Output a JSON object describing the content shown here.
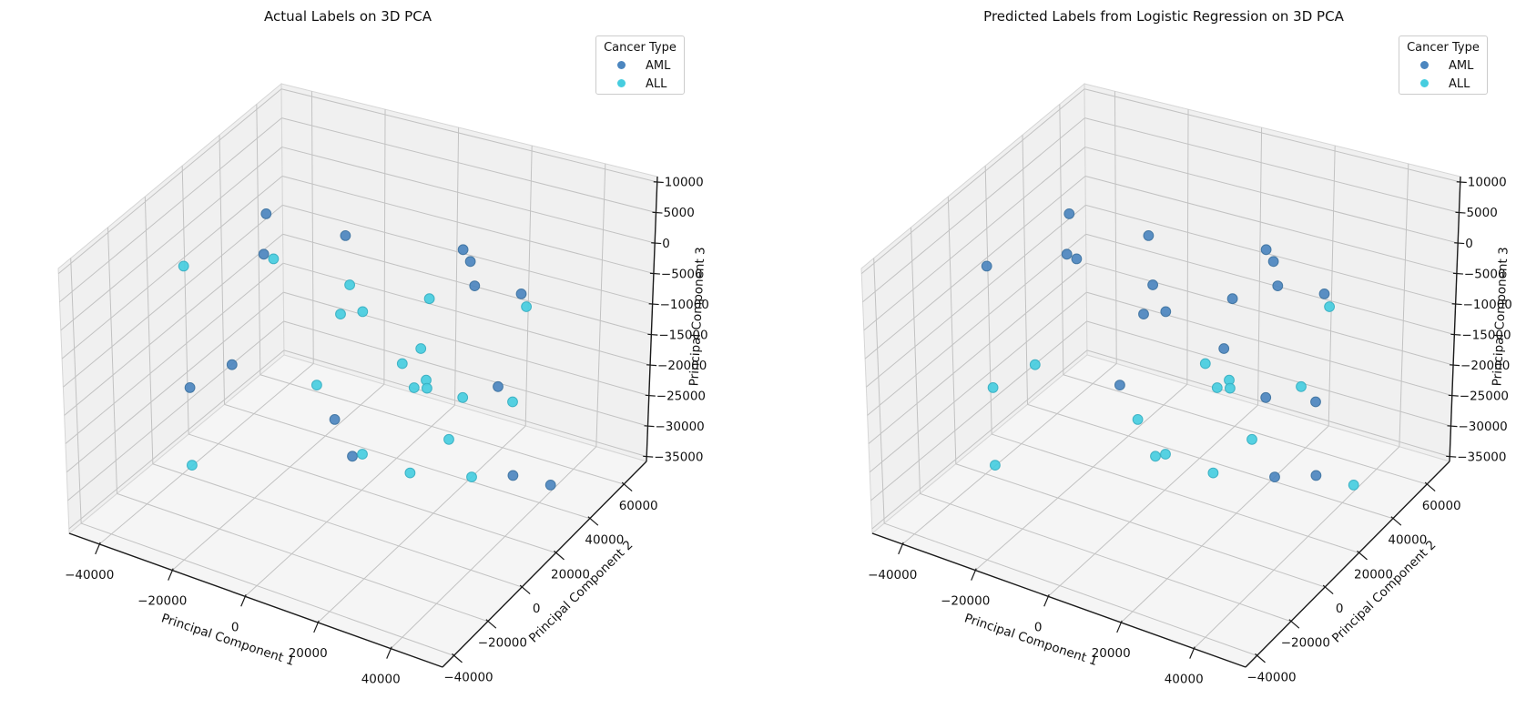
{
  "figure": {
    "background": "#ffffff"
  },
  "charts": [
    {
      "title": "Actual Labels on 3D PCA",
      "legend": {
        "title": "Cancer Type",
        "items": [
          {
            "label": "AML",
            "color": "#4c86bf"
          },
          {
            "label": "ALL",
            "color": "#46cddf"
          }
        ]
      },
      "axes": {
        "xlabel": "Principal Component 1",
        "ylabel": "Principal Component 2",
        "zlabel": "Principal Component 3"
      }
    },
    {
      "title": "Predicted Labels from Logistic Regression on 3D PCA",
      "legend": {
        "title": "Cancer Type",
        "items": [
          {
            "label": "AML",
            "color": "#4c86bf"
          },
          {
            "label": "ALL",
            "color": "#46cddf"
          }
        ]
      },
      "axes": {
        "xlabel": "Principal Component 1",
        "ylabel": "Principal Component 2",
        "zlabel": "Principal Component 3"
      }
    }
  ],
  "chart_data": [
    {
      "type": "scatter",
      "projection": "3d",
      "title": "Actual Labels on 3D PCA",
      "xlabel": "Principal Component 1",
      "ylabel": "Principal Component 2",
      "zlabel": "Principal Component 3",
      "xlim": [
        -48300,
        54200
      ],
      "ylim": [
        -46700,
        73300
      ],
      "zlim": [
        -35800,
        10900
      ],
      "xticks": [
        -40000,
        -20000,
        0,
        20000,
        40000
      ],
      "yticks": [
        -40000,
        -20000,
        0,
        20000,
        40000,
        60000
      ],
      "zticks": [
        -35000,
        -30000,
        -25000,
        -20000,
        -15000,
        -10000,
        -5000,
        0,
        5000,
        10000
      ],
      "series": [
        {
          "name": "AML",
          "color": "#4c86bf",
          "points": [
            [
              -36250,
              40680,
              -775
            ],
            [
              -17900,
              47330,
              -3110
            ],
            [
              -36860,
              40370,
              -7780
            ],
            [
              10125,
              55910,
              -3110
            ],
            [
              9370,
              61680,
              -6850
            ],
            [
              14570,
              53560,
              -7780
            ],
            [
              21440,
              66060,
              -11520
            ],
            [
              -12835,
              -25740,
              -4040
            ],
            [
              -19630,
              -35230,
              -6850
            ],
            [
              8920,
              -13580,
              -12450
            ],
            [
              7520,
              -790,
              -22720
            ],
            [
              32630,
              29980,
              -14790
            ],
            [
              43110,
              17320,
              -24130
            ],
            [
              53030,
              18330,
              -24130
            ]
          ]
        },
        {
          "name": "ALL",
          "color": "#46cddf",
          "points": [
            [
              -30520,
              33050,
              -5450
            ],
            [
              -37230,
              -2190,
              1560
            ],
            [
              -11910,
              37600,
              -7780
            ],
            [
              -13390,
              35440,
              -12450
            ],
            [
              -6230,
              33240,
              -10120
            ],
            [
              21110,
              69870,
              -14790
            ],
            [
              7870,
              41810,
              -7780
            ],
            [
              6650,
              -18820,
              -5450
            ],
            [
              -21350,
              -31650,
              -21790
            ],
            [
              7320,
              5340,
              -24130
            ],
            [
              14110,
              24240,
              -10120
            ],
            [
              10560,
              21140,
              -12450
            ],
            [
              14370,
              26850,
              -16190
            ],
            [
              12340,
              24280,
              -17120
            ],
            [
              13940,
              28280,
              -18050
            ],
            [
              23450,
              29030,
              -18050
            ],
            [
              36040,
              31370,
              -17120
            ],
            [
              24930,
              18210,
              -21790
            ],
            [
              18250,
              9990,
              -26460
            ],
            [
              33070,
              14510,
              -25530
            ]
          ]
        }
      ]
    },
    {
      "type": "scatter",
      "projection": "3d",
      "title": "Predicted Labels from Logistic Regression on 3D PCA",
      "xlabel": "Principal Component 1",
      "ylabel": "Principal Component 2",
      "zlabel": "Principal Component 3",
      "xlim": [
        -48300,
        54200
      ],
      "ylim": [
        -46700,
        73300
      ],
      "zlim": [
        -35800,
        10900
      ],
      "xticks": [
        -40000,
        -20000,
        0,
        20000,
        40000
      ],
      "yticks": [
        -40000,
        -20000,
        0,
        20000,
        40000,
        60000
      ],
      "zticks": [
        -35000,
        -30000,
        -25000,
        -20000,
        -15000,
        -10000,
        -5000,
        0,
        5000,
        10000
      ],
      "series": [
        {
          "name": "AML",
          "color": "#4c86bf",
          "points": [
            [
              -36250,
              40680,
              -775
            ],
            [
              -17900,
              47330,
              -3110
            ],
            [
              -36860,
              40370,
              -7780
            ],
            [
              -30520,
              33050,
              -5450
            ],
            [
              -37230,
              -2190,
              1560
            ],
            [
              -11910,
              37600,
              -7780
            ],
            [
              -13390,
              35440,
              -12450
            ],
            [
              -6230,
              33240,
              -10120
            ],
            [
              10125,
              55910,
              -3110
            ],
            [
              9370,
              61680,
              -6850
            ],
            [
              14570,
              53560,
              -7780
            ],
            [
              21440,
              66060,
              -11520
            ],
            [
              7870,
              41810,
              -7780
            ],
            [
              6650,
              -18820,
              -5450
            ],
            [
              14110,
              24240,
              -10120
            ],
            [
              23450,
              29030,
              -18050
            ],
            [
              36040,
              31370,
              -17120
            ],
            [
              33070,
              14510,
              -25530
            ],
            [
              43110,
              17320,
              -24130
            ]
          ]
        },
        {
          "name": "ALL",
          "color": "#46cddf",
          "points": [
            [
              21110,
              69870,
              -14790
            ],
            [
              -12835,
              -25740,
              -4040
            ],
            [
              -19630,
              -35230,
              -6850
            ],
            [
              8920,
              -13580,
              -12450
            ],
            [
              -21350,
              -31650,
              -21790
            ],
            [
              7520,
              -790,
              -22720
            ],
            [
              7320,
              5340,
              -24130
            ],
            [
              10560,
              21140,
              -12450
            ],
            [
              14370,
              26850,
              -16190
            ],
            [
              12340,
              24280,
              -17120
            ],
            [
              13940,
              28280,
              -18050
            ],
            [
              32630,
              29980,
              -14790
            ],
            [
              24930,
              18210,
              -21790
            ],
            [
              18250,
              9990,
              -26460
            ],
            [
              53030,
              18330,
              -24130
            ]
          ]
        }
      ]
    }
  ]
}
